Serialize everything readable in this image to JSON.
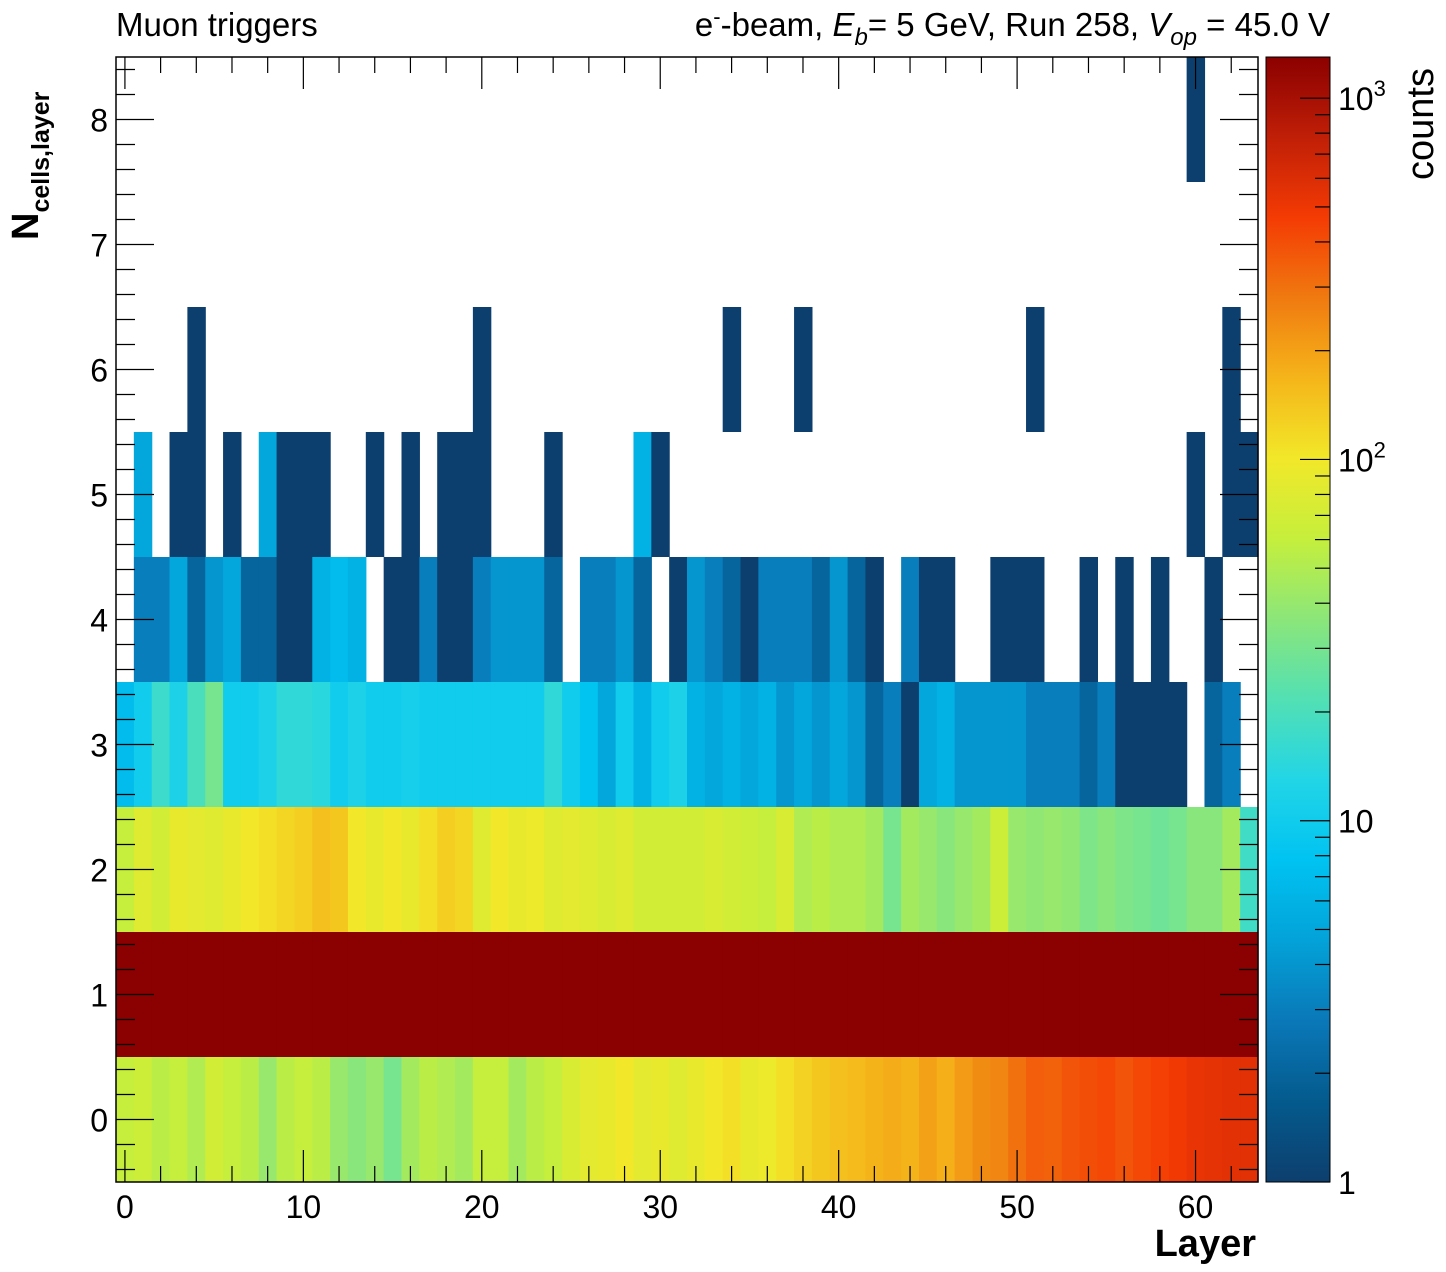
{
  "title_left": "Muon triggers",
  "title_right": {
    "p1": "e",
    "p1_sup": "-",
    "p2": "-beam, ",
    "eb": "E",
    "eb_sub": "b",
    "p3": "= 5 GeV, Run 258, ",
    "vop": "V",
    "vop_sub": "op",
    "p4": " = 45.0 V"
  },
  "chart_data": {
    "type": "heatmap",
    "x_label": "Layer",
    "y_label_main": "N",
    "y_label_sub": "cells,layer",
    "z_label": "counts",
    "x_range": [
      -0.5,
      63.5
    ],
    "y_range": [
      -0.5,
      8.5
    ],
    "z_range": [
      1,
      1300
    ],
    "z_scale": "log",
    "x_ticks": [
      0,
      10,
      20,
      30,
      40,
      50,
      60
    ],
    "y_ticks": [
      0,
      1,
      2,
      3,
      4,
      5,
      6,
      7,
      8
    ],
    "z_ticks": [
      {
        "value": 1,
        "base": "1",
        "exp": ""
      },
      {
        "value": 10,
        "base": "10",
        "exp": ""
      },
      {
        "value": 100,
        "base": "10",
        "exp": "2"
      },
      {
        "value": 1000,
        "base": "10",
        "exp": "3"
      }
    ],
    "palette": [
      "#0d3f6e",
      "#045a8d",
      "#0a78b8",
      "#03a2d8",
      "#00c3f2",
      "#22d5e6",
      "#52e0b4",
      "#8be67a",
      "#c5ef3c",
      "#f2e829",
      "#f5b51a",
      "#f07a10",
      "#f43b04",
      "#c01f07",
      "#8b0000"
    ],
    "rows": {
      "0": [
        60,
        65,
        55,
        60,
        50,
        70,
        60,
        55,
        40,
        55,
        60,
        55,
        40,
        35,
        40,
        30,
        45,
        55,
        50,
        45,
        60,
        60,
        45,
        55,
        60,
        75,
        85,
        90,
        100,
        85,
        90,
        80,
        90,
        100,
        110,
        90,
        95,
        110,
        125,
        140,
        150,
        160,
        170,
        180,
        170,
        200,
        175,
        210,
        240,
        250,
        300,
        350,
        340,
        380,
        400,
        420,
        380,
        420,
        450,
        480,
        520,
        540,
        560,
        560
      ],
      "1": [
        1300,
        1300,
        1300,
        1300,
        1300,
        1300,
        1300,
        1300,
        1300,
        1300,
        1300,
        1300,
        1300,
        1300,
        1300,
        1300,
        1300,
        1300,
        1300,
        1300,
        1300,
        1300,
        1300,
        1300,
        1300,
        1300,
        1300,
        1300,
        1300,
        1300,
        1300,
        1300,
        1300,
        1300,
        1300,
        1300,
        1300,
        1300,
        1300,
        1300,
        1300,
        1300,
        1300,
        1300,
        1300,
        1300,
        1300,
        1300,
        1300,
        1300,
        1300,
        1300,
        1300,
        1300,
        1300,
        1300,
        1300,
        1300,
        1300,
        1300,
        1300,
        1300,
        1300,
        1300
      ],
      "2": [
        60,
        80,
        70,
        90,
        85,
        80,
        90,
        100,
        110,
        120,
        130,
        150,
        140,
        100,
        90,
        100,
        90,
        110,
        130,
        120,
        80,
        100,
        90,
        95,
        80,
        85,
        80,
        75,
        80,
        70,
        70,
        70,
        70,
        75,
        70,
        65,
        60,
        75,
        50,
        55,
        50,
        50,
        45,
        30,
        45,
        40,
        35,
        40,
        45,
        65,
        40,
        38,
        40,
        38,
        32,
        35,
        32,
        30,
        28,
        30,
        35,
        35,
        45,
        18
      ],
      "3": [
        7,
        10,
        17,
        12,
        20,
        30,
        10,
        10,
        12,
        15,
        15,
        14,
        10,
        12,
        10,
        10,
        11,
        10,
        10,
        10,
        10,
        10,
        10,
        10,
        15,
        10,
        8,
        5,
        10,
        6,
        10,
        12,
        6,
        5,
        6,
        5,
        6,
        4,
        5,
        4,
        5,
        4,
        2,
        3,
        1,
        5,
        6,
        4,
        4,
        4,
        4,
        3,
        3,
        3,
        2,
        3,
        1,
        1,
        1,
        1,
        0,
        2,
        3,
        0
      ],
      "4": [
        0,
        3,
        3,
        5,
        2,
        4,
        5,
        2,
        2,
        1,
        1,
        6,
        7,
        6,
        0,
        1,
        1,
        3,
        1,
        1,
        3,
        4,
        4,
        4,
        2,
        0,
        3,
        3,
        4,
        2,
        0,
        1,
        4,
        3,
        2,
        1,
        3,
        3,
        3,
        2,
        4,
        2,
        1,
        0,
        3,
        1,
        1,
        0,
        0,
        1,
        1,
        1,
        0,
        0,
        1,
        0,
        1,
        0,
        1,
        0,
        0,
        1,
        0,
        0
      ],
      "5": [
        0,
        5,
        0,
        1,
        1,
        0,
        1,
        0,
        5,
        1,
        1,
        1,
        0,
        0,
        1,
        0,
        1,
        0,
        1,
        1,
        1,
        0,
        0,
        0,
        1,
        0,
        0,
        0,
        0,
        6,
        1,
        0,
        0,
        0,
        0,
        0,
        0,
        0,
        0,
        0,
        0,
        0,
        0,
        0,
        0,
        0,
        0,
        0,
        0,
        0,
        0,
        0,
        0,
        0,
        0,
        0,
        0,
        0,
        0,
        0,
        1,
        0,
        1,
        1
      ],
      "6": [
        0,
        0,
        0,
        0,
        1,
        0,
        0,
        0,
        0,
        0,
        0,
        0,
        0,
        0,
        0,
        0,
        0,
        0,
        0,
        0,
        1,
        0,
        0,
        0,
        0,
        0,
        0,
        0,
        0,
        0,
        0,
        0,
        0,
        0,
        1,
        0,
        0,
        0,
        1,
        0,
        0,
        0,
        0,
        0,
        0,
        0,
        0,
        0,
        0,
        0,
        0,
        1,
        0,
        0,
        0,
        0,
        0,
        0,
        0,
        0,
        0,
        0,
        1,
        0
      ],
      "7": [
        0,
        0,
        0,
        0,
        0,
        0,
        0,
        0,
        0,
        0,
        0,
        0,
        0,
        0,
        0,
        0,
        0,
        0,
        0,
        0,
        0,
        0,
        0,
        0,
        0,
        0,
        0,
        0,
        0,
        0,
        0,
        0,
        0,
        0,
        0,
        0,
        0,
        0,
        0,
        0,
        0,
        0,
        0,
        0,
        0,
        0,
        0,
        0,
        0,
        0,
        0,
        0,
        0,
        0,
        0,
        0,
        0,
        0,
        0,
        0,
        0,
        0,
        0,
        0
      ],
      "8": [
        0,
        0,
        0,
        0,
        0,
        0,
        0,
        0,
        0,
        0,
        0,
        0,
        0,
        0,
        0,
        0,
        0,
        0,
        0,
        0,
        0,
        0,
        0,
        0,
        0,
        0,
        0,
        0,
        0,
        0,
        0,
        0,
        0,
        0,
        0,
        0,
        0,
        0,
        0,
        0,
        0,
        0,
        0,
        0,
        0,
        0,
        0,
        0,
        0,
        0,
        0,
        0,
        0,
        0,
        0,
        0,
        0,
        0,
        0,
        0,
        1,
        0,
        0,
        0
      ]
    }
  }
}
